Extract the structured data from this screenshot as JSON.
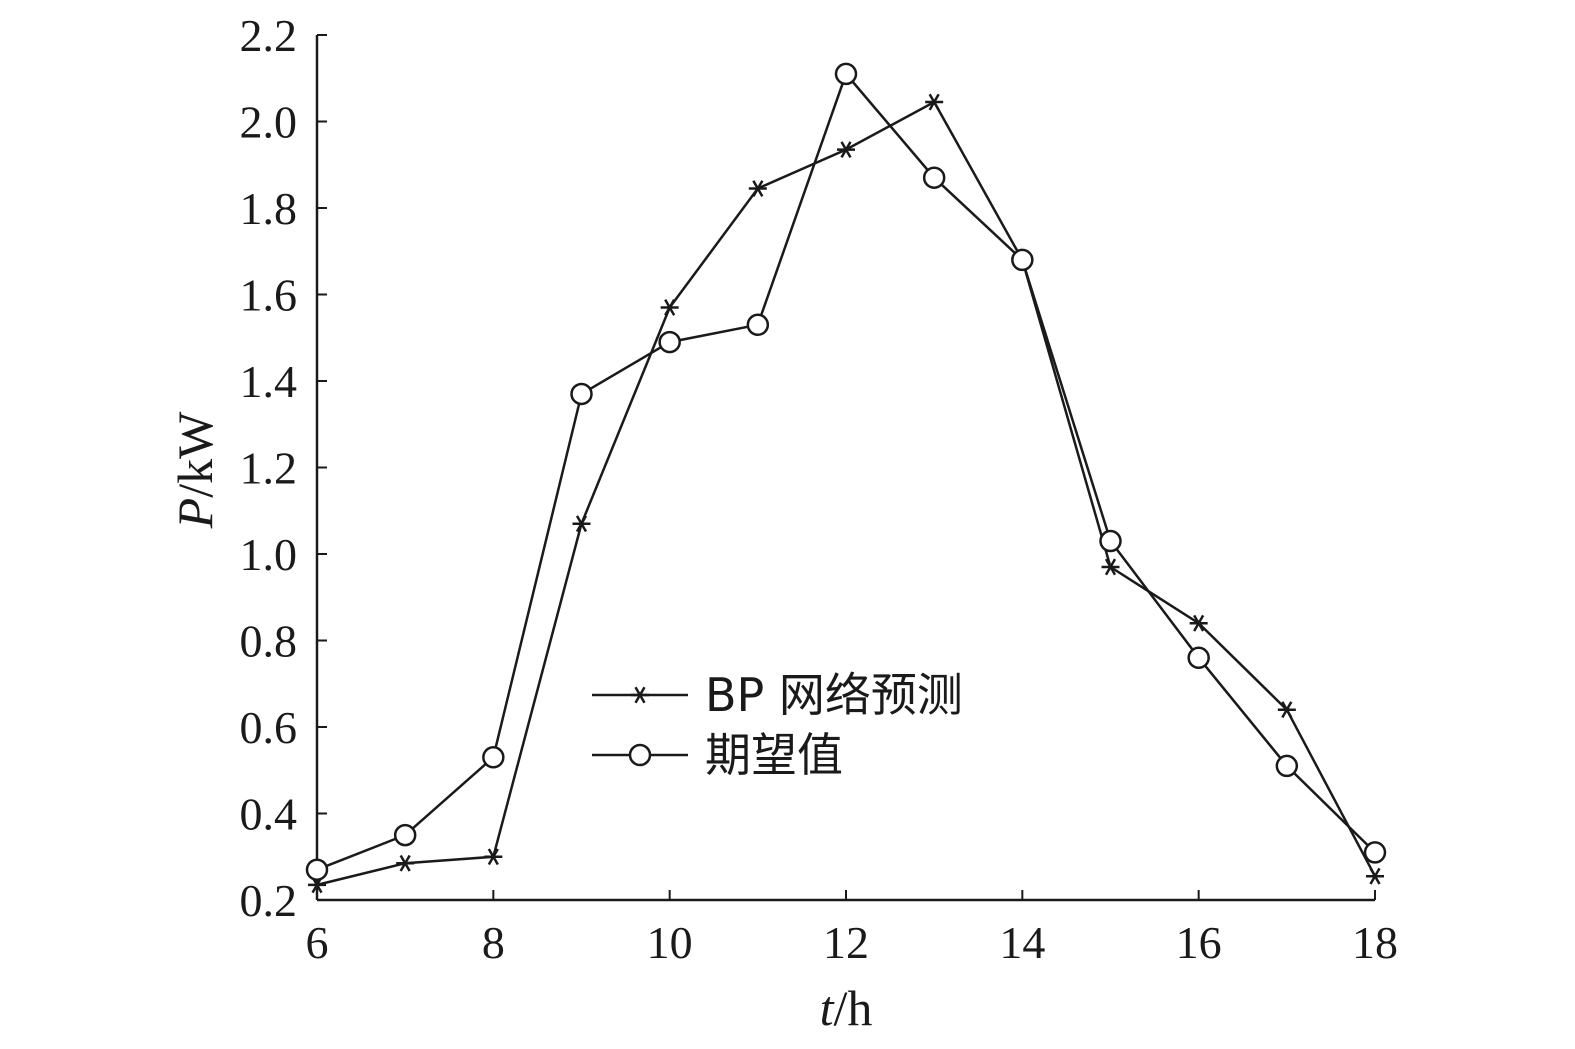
{
  "chart_data": {
    "type": "line",
    "xlabel": {
      "var": "t",
      "unit": "/h"
    },
    "ylabel": {
      "var": "P",
      "unit": "/kW"
    },
    "xlim": [
      6,
      18
    ],
    "ylim": [
      0.2,
      2.2
    ],
    "xticks": [
      6,
      8,
      10,
      12,
      14,
      16,
      18
    ],
    "xtick_labels": [
      "6",
      "8",
      "10",
      "12",
      "14",
      "16",
      "18"
    ],
    "yticks": [
      0.2,
      0.4,
      0.6,
      0.8,
      1.0,
      1.2,
      1.4,
      1.6,
      1.8,
      2.0,
      2.2
    ],
    "ytick_labels": [
      "0.2",
      "0.4",
      "0.6",
      "0.8",
      "1.0",
      "1.2",
      "1.4",
      "1.6",
      "1.8",
      "2.0",
      "2.2"
    ],
    "grid": false,
    "legend_position": "center",
    "x": [
      6,
      7,
      8,
      9,
      10,
      11,
      12,
      13,
      14,
      15,
      16,
      17,
      18
    ],
    "series": [
      {
        "name": "BP 网络预测",
        "marker": "star",
        "values": [
          0.235,
          0.285,
          0.3,
          1.07,
          1.57,
          1.845,
          1.935,
          2.045,
          1.68,
          0.97,
          0.84,
          0.64,
          0.255
        ]
      },
      {
        "name": "期望值",
        "marker": "circle",
        "values": [
          0.27,
          0.35,
          0.53,
          1.37,
          1.49,
          1.53,
          2.11,
          1.87,
          1.68,
          1.03,
          0.76,
          0.51,
          0.31
        ]
      }
    ]
  }
}
